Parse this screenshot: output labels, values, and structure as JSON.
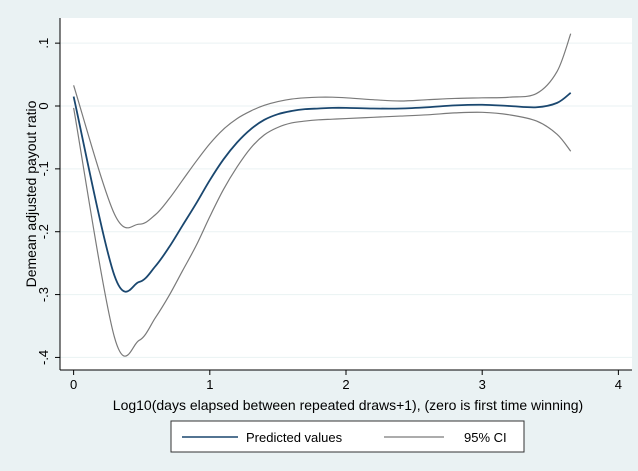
{
  "chart_data": {
    "type": "line",
    "title": "",
    "xlabel": "Log10(days elapsed between repeated draws+1), (zero is first time winning)",
    "ylabel": "Demean adjusted payout ratio",
    "xlim": [
      -0.1,
      4.1
    ],
    "ylim": [
      -0.42,
      0.14
    ],
    "x_ticks": [
      0,
      1,
      2,
      3,
      4
    ],
    "x_tick_labels": [
      "0",
      "1",
      "2",
      "3",
      "4"
    ],
    "y_ticks": [
      -0.4,
      -0.3,
      -0.2,
      -0.1,
      0,
      0.1
    ],
    "y_tick_labels": [
      "-.4",
      "-.3",
      "-.2",
      "-.1",
      "0",
      ".1"
    ],
    "grid": "horizontal",
    "legend_position": "bottom",
    "series": [
      {
        "name": "Predicted values",
        "color": "#1a476f",
        "x": [
          0,
          0.3,
          0.48,
          0.6,
          0.7,
          0.8,
          0.9,
          1.0,
          1.1,
          1.2,
          1.3,
          1.4,
          1.5,
          1.6,
          1.7,
          1.8,
          1.9,
          2.0,
          2.2,
          2.4,
          2.6,
          2.8,
          3.0,
          3.2,
          3.4,
          3.55,
          3.65
        ],
        "y": [
          0.015,
          -0.27,
          -0.28,
          -0.255,
          -0.225,
          -0.19,
          -0.155,
          -0.118,
          -0.085,
          -0.058,
          -0.037,
          -0.022,
          -0.013,
          -0.008,
          -0.005,
          -0.004,
          -0.003,
          -0.003,
          -0.004,
          -0.004,
          -0.002,
          0.001,
          0.002,
          0.0,
          -0.002,
          0.005,
          0.021
        ]
      },
      {
        "name": "95% CI",
        "color": "#7a7a7a",
        "x": [
          0,
          0.3,
          0.48,
          0.6,
          0.7,
          0.8,
          0.9,
          1.0,
          1.1,
          1.2,
          1.3,
          1.4,
          1.5,
          1.6,
          1.7,
          1.8,
          1.9,
          2.0,
          2.2,
          2.4,
          2.6,
          2.8,
          3.0,
          3.2,
          3.4,
          3.55,
          3.65
        ],
        "y": [
          0.033,
          -0.172,
          -0.188,
          -0.173,
          -0.148,
          -0.118,
          -0.088,
          -0.06,
          -0.037,
          -0.02,
          -0.008,
          0.001,
          0.007,
          0.011,
          0.013,
          0.014,
          0.014,
          0.013,
          0.01,
          0.008,
          0.01,
          0.012,
          0.013,
          0.014,
          0.02,
          0.055,
          0.115
        ]
      },
      {
        "name": "95% CI",
        "color": "#7a7a7a",
        "x": [
          0,
          0.3,
          0.48,
          0.6,
          0.7,
          0.8,
          0.9,
          1.0,
          1.1,
          1.2,
          1.3,
          1.4,
          1.5,
          1.6,
          1.7,
          1.8,
          1.9,
          2.0,
          2.2,
          2.4,
          2.6,
          2.8,
          3.0,
          3.2,
          3.4,
          3.55,
          3.65
        ],
        "y": [
          -0.003,
          -0.368,
          -0.373,
          -0.337,
          -0.302,
          -0.262,
          -0.222,
          -0.176,
          -0.133,
          -0.097,
          -0.067,
          -0.046,
          -0.034,
          -0.027,
          -0.024,
          -0.022,
          -0.021,
          -0.02,
          -0.018,
          -0.016,
          -0.014,
          -0.011,
          -0.01,
          -0.014,
          -0.024,
          -0.045,
          -0.072
        ]
      }
    ],
    "legend": [
      {
        "label": "Predicted values",
        "color": "#1a476f"
      },
      {
        "label": "95% CI",
        "color": "#7a7a7a"
      }
    ]
  }
}
